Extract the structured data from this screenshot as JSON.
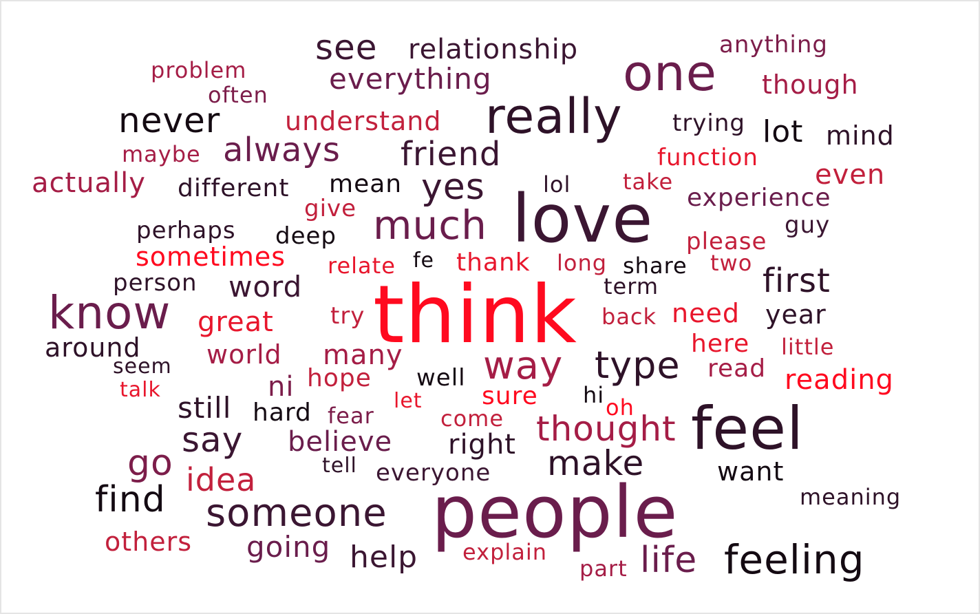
{
  "colors": {
    "background": "#ffffff",
    "palette": [
      "#ff0a1f",
      "#c2203c",
      "#a51d46",
      "#7c1d4a",
      "#5a1a44",
      "#3b1632",
      "#1c0b1a"
    ]
  },
  "words": [
    {
      "text": "think",
      "color": "#ff0a1f"
    },
    {
      "text": "people",
      "color": "#6a1d4c"
    },
    {
      "text": "love",
      "color": "#3b1632"
    },
    {
      "text": "feel",
      "color": "#2e1228"
    },
    {
      "text": "one",
      "color": "#6a1d4c"
    },
    {
      "text": "really",
      "color": "#2e1228"
    },
    {
      "text": "know",
      "color": "#6a1d4c"
    },
    {
      "text": "much",
      "color": "#6a1d4c"
    },
    {
      "text": "someone",
      "color": "#3b1632"
    },
    {
      "text": "feeling",
      "color": "#140a12"
    },
    {
      "text": "type",
      "color": "#2e1228"
    },
    {
      "text": "way",
      "color": "#a51d46"
    },
    {
      "text": "thought",
      "color": "#a51d46"
    },
    {
      "text": "make",
      "color": "#2e1228"
    },
    {
      "text": "find",
      "color": "#140a12"
    },
    {
      "text": "go",
      "color": "#7c1d4a"
    },
    {
      "text": "say",
      "color": "#3b1632"
    },
    {
      "text": "life",
      "color": "#6a1d4c"
    },
    {
      "text": "help",
      "color": "#3b1632"
    },
    {
      "text": "idea",
      "color": "#c2203c"
    },
    {
      "text": "friend",
      "color": "#3b1632"
    },
    {
      "text": "yes",
      "color": "#3b1632"
    },
    {
      "text": "always",
      "color": "#6a1d4c"
    },
    {
      "text": "never",
      "color": "#140a12"
    },
    {
      "text": "see",
      "color": "#3b1632"
    },
    {
      "text": "first",
      "color": "#2e1228"
    },
    {
      "text": "relationship",
      "color": "#3b1632"
    },
    {
      "text": "everything",
      "color": "#6a1d4c"
    },
    {
      "text": "understand",
      "color": "#c2203c"
    },
    {
      "text": "lot",
      "color": "#140a12"
    },
    {
      "text": "mind",
      "color": "#2e1228"
    },
    {
      "text": "even",
      "color": "#c2203c"
    },
    {
      "text": "though",
      "color": "#a51d46"
    },
    {
      "text": "anything",
      "color": "#7c1d4a"
    },
    {
      "text": "trying",
      "color": "#2e1228"
    },
    {
      "text": "function",
      "color": "#e8162c"
    },
    {
      "text": "problem",
      "color": "#a51d46"
    },
    {
      "text": "often",
      "color": "#7c1d4a"
    },
    {
      "text": "maybe",
      "color": "#a51d46"
    },
    {
      "text": "actually",
      "color": "#a51d46"
    },
    {
      "text": "different",
      "color": "#2e1228"
    },
    {
      "text": "mean",
      "color": "#140a12"
    },
    {
      "text": "lol",
      "color": "#2e1228"
    },
    {
      "text": "take",
      "color": "#c2203c"
    },
    {
      "text": "experience",
      "color": "#6a1d4c"
    },
    {
      "text": "give",
      "color": "#c2203c"
    },
    {
      "text": "perhaps",
      "color": "#2e1228"
    },
    {
      "text": "deep",
      "color": "#140a12"
    },
    {
      "text": "guy",
      "color": "#3b1632"
    },
    {
      "text": "please",
      "color": "#c2203c"
    },
    {
      "text": "sometimes",
      "color": "#ff0a1f"
    },
    {
      "text": "relate",
      "color": "#e8162c"
    },
    {
      "text": "fe",
      "color": "#140a12"
    },
    {
      "text": "thank",
      "color": "#e8162c"
    },
    {
      "text": "long",
      "color": "#c2203c"
    },
    {
      "text": "share",
      "color": "#140a12"
    },
    {
      "text": "two",
      "color": "#c2203c"
    },
    {
      "text": "person",
      "color": "#2e1228"
    },
    {
      "text": "word",
      "color": "#3b1632"
    },
    {
      "text": "term",
      "color": "#2e1228"
    },
    {
      "text": "great",
      "color": "#e8162c"
    },
    {
      "text": "try",
      "color": "#c2203c"
    },
    {
      "text": "back",
      "color": "#c2203c"
    },
    {
      "text": "need",
      "color": "#e8162c"
    },
    {
      "text": "year",
      "color": "#2e1228"
    },
    {
      "text": "around",
      "color": "#2e1228"
    },
    {
      "text": "here",
      "color": "#e8162c"
    },
    {
      "text": "little",
      "color": "#c2203c"
    },
    {
      "text": "seem",
      "color": "#2e1228"
    },
    {
      "text": "world",
      "color": "#a51d46"
    },
    {
      "text": "many",
      "color": "#a51d46"
    },
    {
      "text": "read",
      "color": "#a51d46"
    },
    {
      "text": "ni",
      "color": "#7c1d4a"
    },
    {
      "text": "hope",
      "color": "#c2203c"
    },
    {
      "text": "well",
      "color": "#140a12"
    },
    {
      "text": "reading",
      "color": "#ff0a1f"
    },
    {
      "text": "talk",
      "color": "#e8162c"
    },
    {
      "text": "still",
      "color": "#2e1228"
    },
    {
      "text": "hard",
      "color": "#140a12"
    },
    {
      "text": "fear",
      "color": "#7c1d4a"
    },
    {
      "text": "let",
      "color": "#e8162c"
    },
    {
      "text": "sure",
      "color": "#ff0a1f"
    },
    {
      "text": "hi",
      "color": "#140a12"
    },
    {
      "text": "oh",
      "color": "#ff0a1f"
    },
    {
      "text": "come",
      "color": "#c2203c"
    },
    {
      "text": "believe",
      "color": "#6a1d4c"
    },
    {
      "text": "right",
      "color": "#2e1228"
    },
    {
      "text": "tell",
      "color": "#2e1228"
    },
    {
      "text": "everyone",
      "color": "#3b1632"
    },
    {
      "text": "want",
      "color": "#140a12"
    },
    {
      "text": "meaning",
      "color": "#2e1228"
    },
    {
      "text": "others",
      "color": "#c2203c"
    },
    {
      "text": "going",
      "color": "#6a1d4c"
    },
    {
      "text": "explain",
      "color": "#c2203c"
    },
    {
      "text": "part",
      "color": "#a51d46"
    }
  ]
}
